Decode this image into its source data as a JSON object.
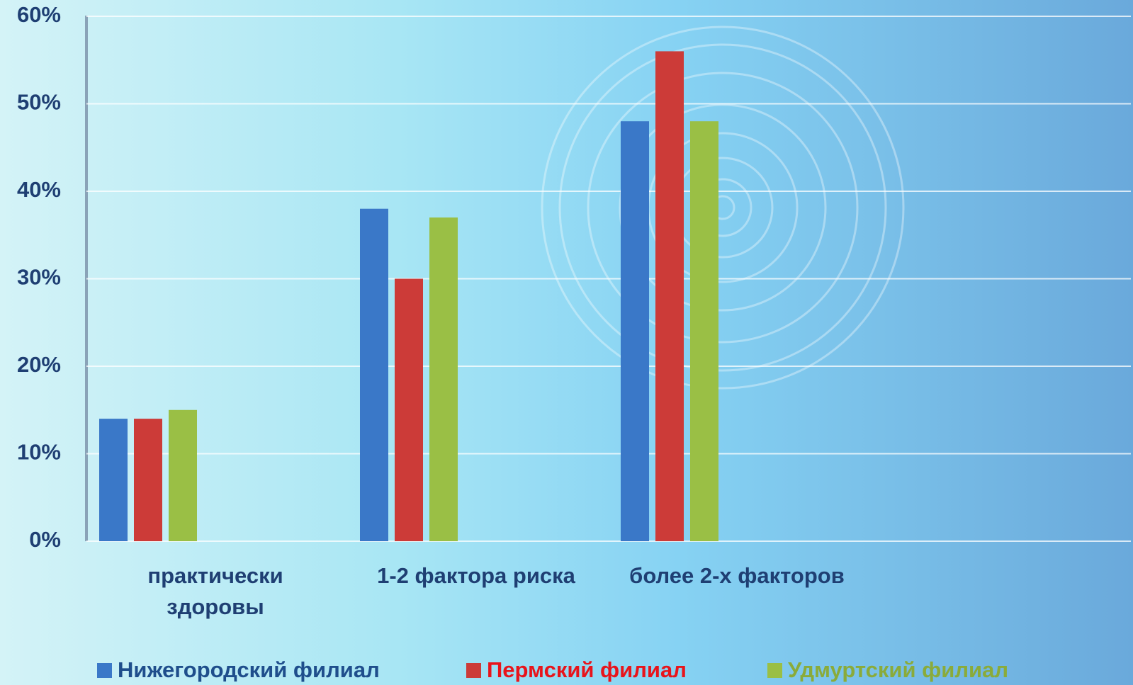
{
  "chart_data": {
    "type": "bar",
    "categories": [
      "практически здоровы",
      "1-2 фактора риска",
      "более 2-х факторов"
    ],
    "series": [
      {
        "name": "Нижегородский филиал",
        "color": "#3a78c8",
        "values": [
          14,
          38,
          48
        ]
      },
      {
        "name": "Пермский филиал",
        "color": "#cc3b38",
        "values": [
          14,
          30,
          56
        ]
      },
      {
        "name": "Удмуртский филиал",
        "color": "#9abf45",
        "values": [
          15,
          37,
          48
        ]
      }
    ],
    "ylim": [
      0,
      60
    ],
    "yticks": [
      {
        "value": 0,
        "label": "0%"
      },
      {
        "value": 10,
        "label": "10%"
      },
      {
        "value": 20,
        "label": "20%"
      },
      {
        "value": 30,
        "label": "30%"
      },
      {
        "value": 40,
        "label": "40%"
      },
      {
        "value": 50,
        "label": "50%"
      },
      {
        "value": 60,
        "label": "60%"
      }
    ],
    "grid": true,
    "legend": "bottom"
  }
}
